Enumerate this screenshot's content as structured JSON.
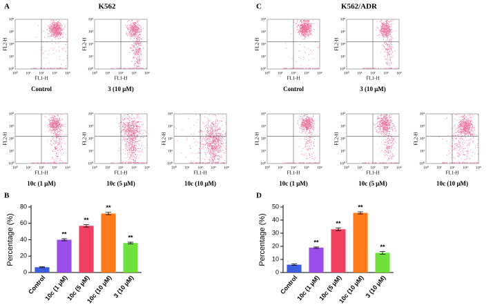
{
  "panels": [
    {
      "letter": "A",
      "title": "K562",
      "axis_ticks": [
        "10⁰",
        "10¹",
        "10²",
        "10³",
        "10⁴"
      ],
      "x_label": "FL1-H",
      "y_label": "FL2-H",
      "plots": [
        "Control",
        "3 (10 μM)",
        "10c (1 μM)",
        "10c (5 μM)",
        "10c (10 μM)"
      ]
    },
    {
      "letter": "C",
      "title": "K562/ADR",
      "axis_ticks": [
        "10⁰",
        "10¹",
        "10²",
        "10³",
        "10⁴"
      ],
      "x_label": "FL1-H",
      "y_label": "FL2-H",
      "plots": [
        "Control",
        "3 (10 μM)",
        "10c (1 μM)",
        "10c (5 μM)",
        "10c (10 μM)"
      ]
    }
  ],
  "chart_data": [
    {
      "type": "bar",
      "letter": "B",
      "y_label": "Percentage (%)",
      "categories": [
        "Control",
        "10c (1 μM)",
        "10c (5 μM)",
        "10c (10 μM)",
        "3 (10 μM)"
      ],
      "values": [
        6.5,
        40,
        57,
        72,
        36
      ],
      "errors": [
        0.5,
        1.2,
        1.5,
        1.5,
        1
      ],
      "significance": [
        null,
        "**",
        "**",
        "**",
        "**"
      ],
      "colors": [
        "#3b5ee0",
        "#9a4de8",
        "#f0405f",
        "#ff7a1a",
        "#6fe03c"
      ],
      "ylim": [
        0,
        80
      ],
      "yticks": [
        0,
        20,
        40,
        60,
        80
      ]
    },
    {
      "type": "bar",
      "letter": "D",
      "y_label": "Percentage (%)",
      "categories": [
        "Control",
        "10c (1 μM)",
        "10c (5 μM)",
        "10c (10 μM)",
        "3 (10 μM)"
      ],
      "values": [
        6,
        19,
        33,
        45.5,
        15
      ],
      "errors": [
        0.5,
        0.5,
        1,
        0.8,
        1
      ],
      "significance": [
        null,
        "**",
        "**",
        "**",
        "**"
      ],
      "colors": [
        "#3b5ee0",
        "#9a4de8",
        "#f0405f",
        "#ff7a1a",
        "#6fe03c"
      ],
      "ylim": [
        0,
        50
      ],
      "yticks": [
        0,
        10,
        20,
        30,
        40,
        50
      ]
    }
  ]
}
